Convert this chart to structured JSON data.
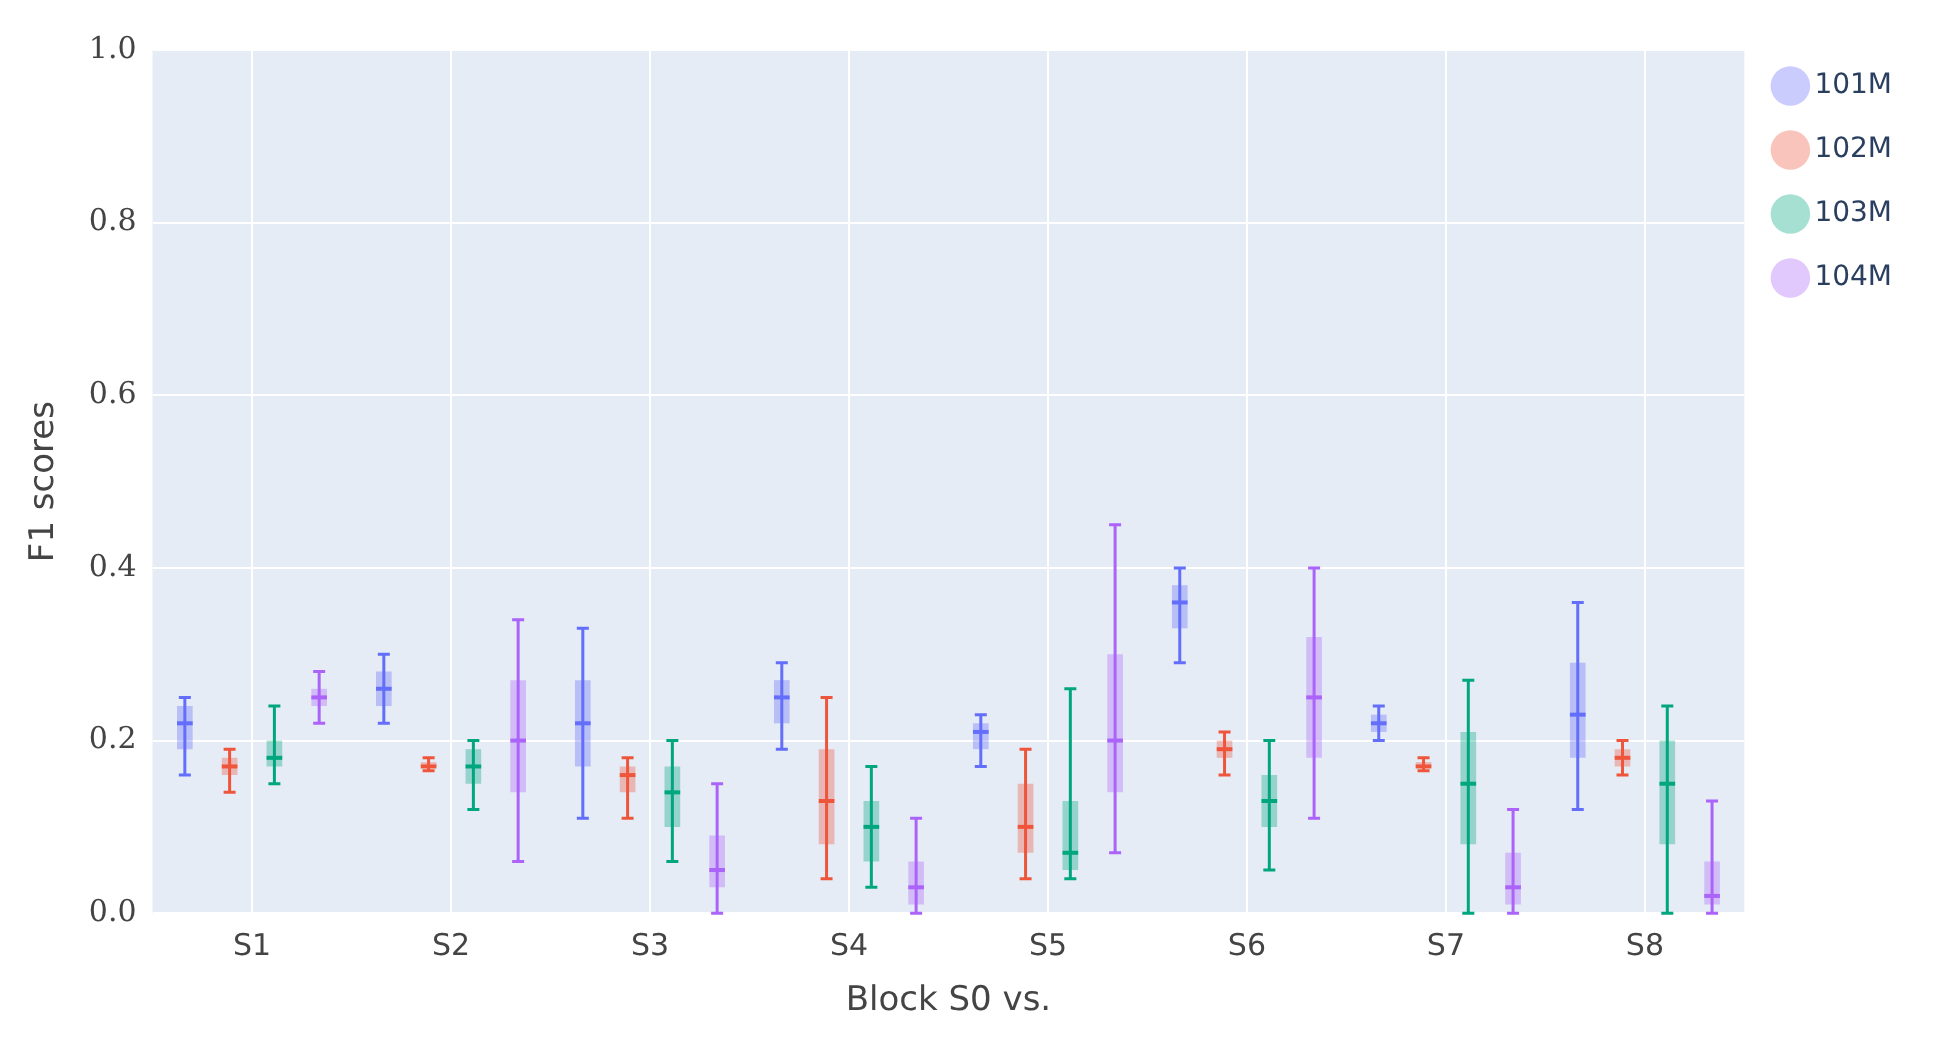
{
  "chart_data": {
    "type": "box",
    "xlabel": "Block S0 vs.",
    "ylabel": "F1 scores",
    "categories": [
      "S1",
      "S2",
      "S3",
      "S4",
      "S5",
      "S6",
      "S7",
      "S8"
    ],
    "ylim": [
      0,
      1
    ],
    "yticks": [
      {
        "value": 0,
        "label": "0.0"
      },
      {
        "value": 0.2,
        "label": "0.2"
      },
      {
        "value": 0.4,
        "label": "0.4"
      },
      {
        "value": 0.6,
        "label": "0.6"
      },
      {
        "value": 0.8,
        "label": "0.8"
      },
      {
        "value": 1,
        "label": "1.0"
      }
    ],
    "grid": true,
    "legend": "top right",
    "series": [
      {
        "name": "101M",
        "color": "#636efa",
        "boxes": [
          {
            "low": 0.16,
            "q1": 0.19,
            "median": 0.22,
            "q3": 0.24,
            "high": 0.25
          },
          {
            "low": 0.22,
            "q1": 0.24,
            "median": 0.26,
            "q3": 0.28,
            "high": 0.3
          },
          {
            "low": 0.11,
            "q1": 0.17,
            "median": 0.22,
            "q3": 0.27,
            "high": 0.33
          },
          {
            "low": 0.19,
            "q1": 0.22,
            "median": 0.25,
            "q3": 0.27,
            "high": 0.29
          },
          {
            "low": 0.17,
            "q1": 0.19,
            "median": 0.21,
            "q3": 0.22,
            "high": 0.23
          },
          {
            "low": 0.29,
            "q1": 0.33,
            "median": 0.36,
            "q3": 0.38,
            "high": 0.4
          },
          {
            "low": 0.2,
            "q1": 0.21,
            "median": 0.22,
            "q3": 0.23,
            "high": 0.24
          },
          {
            "low": 0.12,
            "q1": 0.18,
            "median": 0.23,
            "q3": 0.29,
            "high": 0.36
          }
        ]
      },
      {
        "name": "102M",
        "color": "#ef553b",
        "boxes": [
          {
            "low": 0.14,
            "q1": 0.16,
            "median": 0.17,
            "q3": 0.18,
            "high": 0.19
          },
          {
            "low": 0.165,
            "q1": 0.17,
            "median": 0.17,
            "q3": 0.175,
            "high": 0.18
          },
          {
            "low": 0.11,
            "q1": 0.14,
            "median": 0.16,
            "q3": 0.17,
            "high": 0.18
          },
          {
            "low": 0.04,
            "q1": 0.08,
            "median": 0.13,
            "q3": 0.19,
            "high": 0.25
          },
          {
            "low": 0.04,
            "q1": 0.07,
            "median": 0.1,
            "q3": 0.15,
            "high": 0.19
          },
          {
            "low": 0.16,
            "q1": 0.18,
            "median": 0.19,
            "q3": 0.2,
            "high": 0.21
          },
          {
            "low": 0.165,
            "q1": 0.17,
            "median": 0.17,
            "q3": 0.175,
            "high": 0.18
          },
          {
            "low": 0.16,
            "q1": 0.17,
            "median": 0.18,
            "q3": 0.19,
            "high": 0.2
          }
        ]
      },
      {
        "name": "103M",
        "color": "#00a67e",
        "boxes": [
          {
            "low": 0.15,
            "q1": 0.17,
            "median": 0.18,
            "q3": 0.2,
            "high": 0.24
          },
          {
            "low": 0.12,
            "q1": 0.15,
            "median": 0.17,
            "q3": 0.19,
            "high": 0.2
          },
          {
            "low": 0.06,
            "q1": 0.1,
            "median": 0.14,
            "q3": 0.17,
            "high": 0.2
          },
          {
            "low": 0.03,
            "q1": 0.06,
            "median": 0.1,
            "q3": 0.13,
            "high": 0.17
          },
          {
            "low": 0.04,
            "q1": 0.05,
            "median": 0.07,
            "q3": 0.13,
            "high": 0.26
          },
          {
            "low": 0.05,
            "q1": 0.1,
            "median": 0.13,
            "q3": 0.16,
            "high": 0.2
          },
          {
            "low": 0,
            "q1": 0.08,
            "median": 0.15,
            "q3": 0.21,
            "high": 0.27
          },
          {
            "low": 0,
            "q1": 0.08,
            "median": 0.15,
            "q3": 0.2,
            "high": 0.24
          }
        ]
      },
      {
        "name": "104M",
        "color": "#ab63fa",
        "boxes": [
          {
            "low": 0.22,
            "q1": 0.24,
            "median": 0.25,
            "q3": 0.26,
            "high": 0.28
          },
          {
            "low": 0.06,
            "q1": 0.14,
            "median": 0.2,
            "q3": 0.27,
            "high": 0.34
          },
          {
            "low": 0,
            "q1": 0.03,
            "median": 0.05,
            "q3": 0.09,
            "high": 0.15
          },
          {
            "low": 0,
            "q1": 0.01,
            "median": 0.03,
            "q3": 0.06,
            "high": 0.11
          },
          {
            "low": 0.07,
            "q1": 0.14,
            "median": 0.2,
            "q3": 0.3,
            "high": 0.45
          },
          {
            "low": 0.11,
            "q1": 0.18,
            "median": 0.25,
            "q3": 0.32,
            "high": 0.4
          },
          {
            "low": 0,
            "q1": 0.01,
            "median": 0.03,
            "q3": 0.07,
            "high": 0.12
          },
          {
            "low": 0,
            "q1": 0.01,
            "median": 0.02,
            "q3": 0.06,
            "high": 0.13
          }
        ]
      }
    ]
  }
}
